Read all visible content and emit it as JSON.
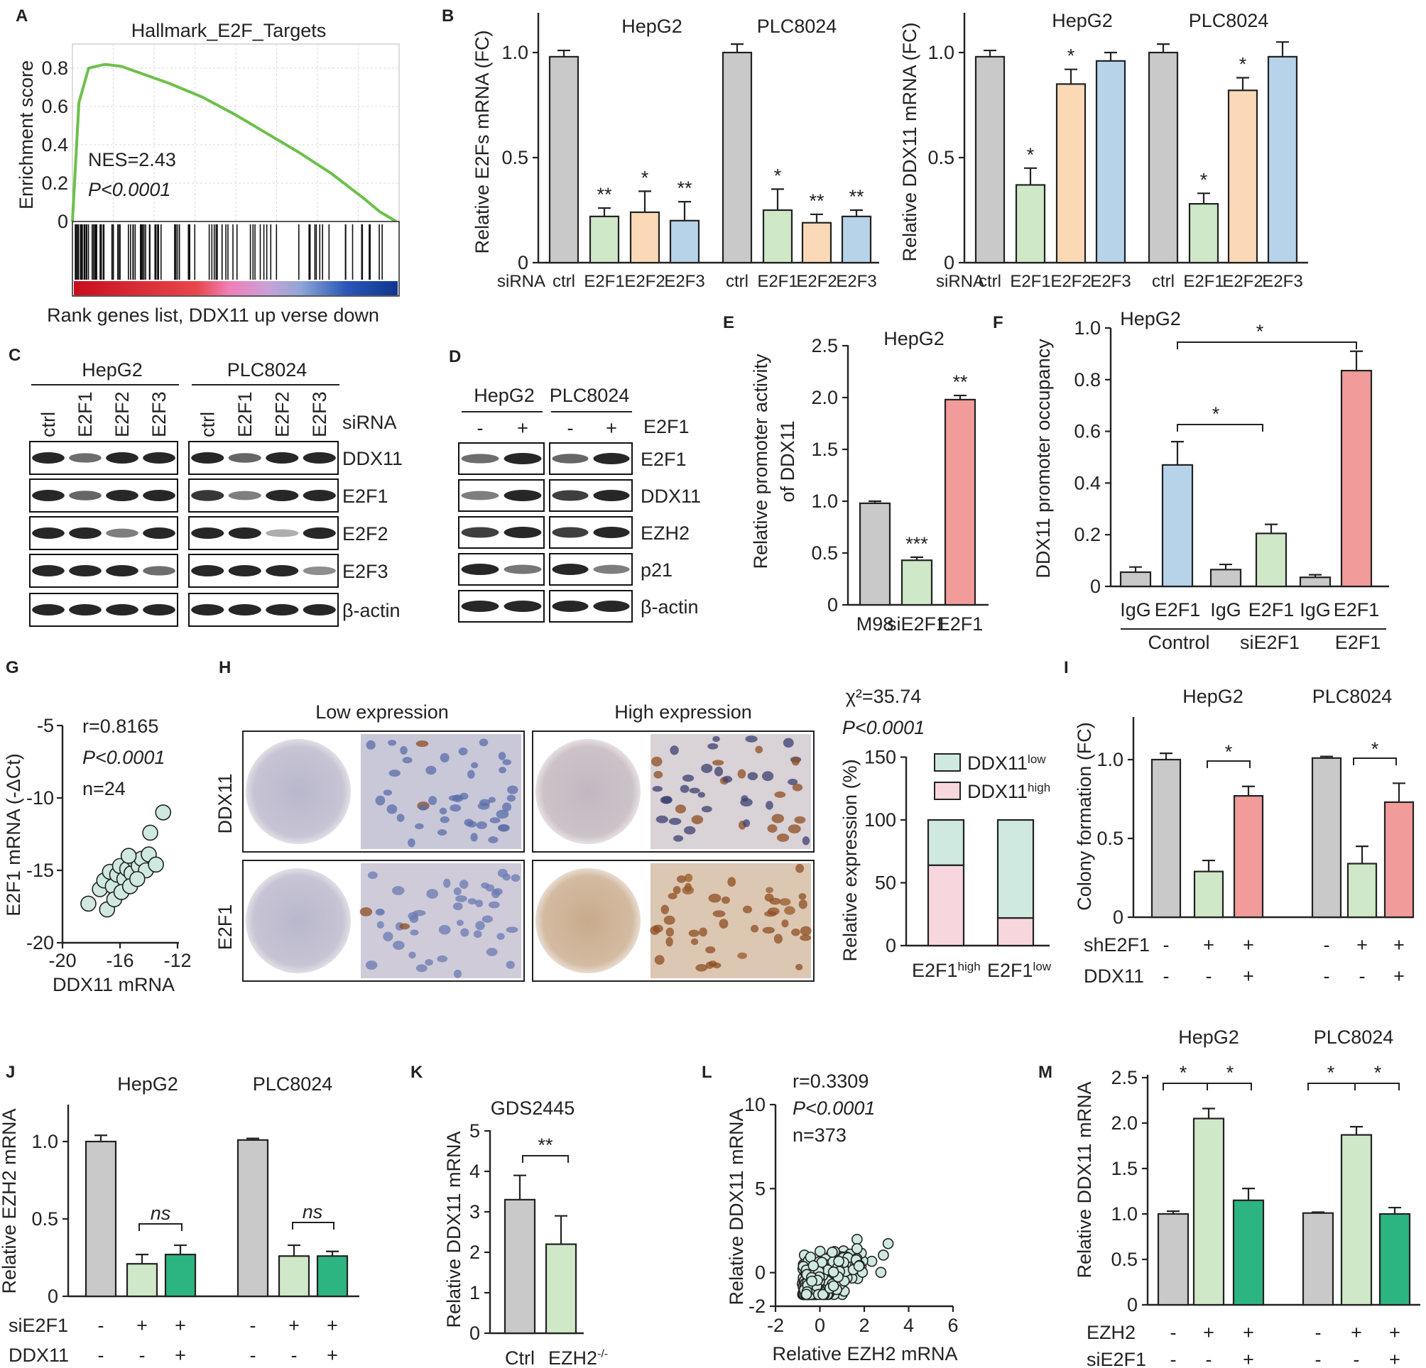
{
  "colors": {
    "ctrl": "#c9c9c9",
    "e2f1": "#cfe8c8",
    "e2f2": "#fbd9b7",
    "e2f3": "#b6d3ea",
    "red": "#f19b9b",
    "green": "#2db581",
    "pink": "#f7d6dd",
    "teal": "#cfe9e0",
    "gsea_line": "#6cc04a"
  },
  "panels": {
    "A": {
      "letter": "A",
      "chart_data": {
        "type": "line",
        "title": "Hallmark_E2F_Targets",
        "ylabel": "Enrichment score",
        "xlabel": "Rank genes list, DDX11 up verse down",
        "yticks": [
          "0",
          "0.2",
          "0.4",
          "0.6",
          "0.8"
        ],
        "ylim": [
          0,
          0.85
        ],
        "x": [
          0,
          0.02,
          0.05,
          0.1,
          0.15,
          0.2,
          0.3,
          0.4,
          0.5,
          0.6,
          0.7,
          0.8,
          0.9,
          0.95,
          1.0
        ],
        "y": [
          0,
          0.62,
          0.8,
          0.82,
          0.81,
          0.78,
          0.72,
          0.65,
          0.56,
          0.46,
          0.36,
          0.25,
          0.12,
          0.05,
          0
        ],
        "annotations": [
          "NES=2.43",
          "P<0.0001"
        ]
      }
    },
    "B1": {
      "letter": "B",
      "chart_data": {
        "type": "bar",
        "ylabel": "Relative E2Fs mRNA (FC)",
        "yticks": [
          "0",
          "0.5",
          "1.0"
        ],
        "ylim": [
          0,
          1.2
        ],
        "row_label": "siRNA",
        "groups": [
          "HepG2",
          "PLC8024"
        ],
        "categories": [
          "ctrl",
          "E2F1",
          "E2F2",
          "E2F3",
          "ctrl",
          "E2F1",
          "E2F2",
          "E2F3"
        ],
        "values": [
          0.98,
          0.22,
          0.24,
          0.2,
          1.0,
          0.25,
          0.19,
          0.22
        ],
        "errors": [
          0.03,
          0.04,
          0.1,
          0.09,
          0.04,
          0.1,
          0.04,
          0.03
        ],
        "significance": [
          "",
          "**",
          "*",
          "**",
          "",
          "*",
          "**",
          "**"
        ]
      }
    },
    "B2": {
      "chart_data": {
        "type": "bar",
        "ylabel": "Relative DDX11 mRNA (FC)",
        "yticks": [
          "0",
          "0.5",
          "1.0"
        ],
        "ylim": [
          0,
          1.2
        ],
        "row_label": "siRNA",
        "groups": [
          "HepG2",
          "PLC8024"
        ],
        "categories": [
          "ctrl",
          "E2F1",
          "E2F2",
          "E2F3",
          "ctrl",
          "E2F1",
          "E2F2",
          "E2F3"
        ],
        "values": [
          0.98,
          0.37,
          0.85,
          0.96,
          1.0,
          0.28,
          0.82,
          0.98
        ],
        "errors": [
          0.03,
          0.08,
          0.07,
          0.04,
          0.04,
          0.05,
          0.06,
          0.07
        ],
        "significance": [
          "",
          "*",
          "*",
          "",
          "",
          "*",
          "*",
          ""
        ]
      }
    },
    "C": {
      "letter": "C",
      "cells": [
        "HepG2",
        "PLC8024"
      ],
      "lanes": [
        "ctrl",
        "E2F1",
        "E2F2",
        "E2F3"
      ],
      "lane_header": "siRNA",
      "rows": [
        "DDX11",
        "E2F1",
        "E2F2",
        "E2F3",
        "β-actin"
      ]
    },
    "D": {
      "letter": "D",
      "cells": [
        "HepG2",
        "PLC8024"
      ],
      "lanes": [
        "-",
        "+"
      ],
      "lane_header": "E2F1",
      "rows": [
        "E2F1",
        "DDX11",
        "EZH2",
        "p21",
        "β-actin"
      ]
    },
    "E": {
      "letter": "E",
      "chart_data": {
        "type": "bar",
        "title": "HepG2",
        "ylabel_lines": [
          "Relative promoter activity",
          "of DDX11"
        ],
        "yticks": [
          "0",
          "0.5",
          "1.0",
          "1.5",
          "2.0",
          "2.5"
        ],
        "ylim": [
          0,
          2.5
        ],
        "categories": [
          "M98",
          "siE2F1",
          "E2F1"
        ],
        "values": [
          0.98,
          0.43,
          1.98
        ],
        "errors": [
          0.02,
          0.03,
          0.04
        ],
        "significance": [
          "",
          "***",
          "**"
        ]
      }
    },
    "F": {
      "letter": "F",
      "chart_data": {
        "type": "bar",
        "title": "HepG2",
        "ylabel": "DDX11 promoter occupancy",
        "yticks": [
          "0",
          "0.2",
          "0.4",
          "0.6",
          "0.8",
          "1.0"
        ],
        "ylim": [
          0,
          1.0
        ],
        "categories": [
          "IgG",
          "E2F1",
          "IgG",
          "E2F1",
          "IgG",
          "E2F1"
        ],
        "groups": [
          "Control",
          "siE2F1",
          "E2F1"
        ],
        "values": [
          0.055,
          0.47,
          0.065,
          0.205,
          0.035,
          0.835
        ],
        "errors": [
          0.02,
          0.09,
          0.02,
          0.035,
          0.01,
          0.075
        ],
        "significance": [
          "*",
          "*"
        ]
      }
    },
    "G": {
      "letter": "G",
      "chart_data": {
        "type": "scatter",
        "xlabel": "DDX11 mRNA",
        "ylabel": "E2F1 mRNA (-ΔCt)",
        "xticks": [
          "-20",
          "-16",
          "-12"
        ],
        "yticks": [
          "-5",
          "-10",
          "-15",
          "-20"
        ],
        "xlim": [
          -20,
          -12
        ],
        "ylim": [
          -20,
          -5
        ],
        "points": [
          [
            -18.2,
            -17.3
          ],
          [
            -17.4,
            -16.3
          ],
          [
            -17.1,
            -15.7
          ],
          [
            -16.7,
            -15.1
          ],
          [
            -16.5,
            -16.1
          ],
          [
            -16.2,
            -15.3
          ],
          [
            -16.0,
            -14.7
          ],
          [
            -15.7,
            -15.6
          ],
          [
            -15.5,
            -14.9
          ],
          [
            -15.2,
            -15.2
          ],
          [
            -15.0,
            -14.3
          ],
          [
            -14.7,
            -14.7
          ],
          [
            -14.5,
            -14.2
          ],
          [
            -14.2,
            -15.0
          ],
          [
            -14.0,
            -13.9
          ],
          [
            -16.9,
            -17.7
          ],
          [
            -16.4,
            -17.0
          ],
          [
            -15.9,
            -16.5
          ],
          [
            -15.3,
            -16.1
          ],
          [
            -14.8,
            -15.6
          ],
          [
            -13.5,
            -14.6
          ],
          [
            -13.9,
            -12.4
          ],
          [
            -13.0,
            -11.0
          ],
          [
            -15.4,
            -14.0
          ]
        ],
        "stats": [
          "r=0.8165",
          "P<0.0001",
          "n=24"
        ]
      }
    },
    "H": {
      "letter": "H",
      "col_titles": [
        "Low expression",
        "High expression"
      ],
      "row_titles": [
        "DDX11",
        "E2F1"
      ],
      "chart_data": {
        "type": "bar",
        "stacked": true,
        "stats": [
          "χ²=35.74",
          "P<0.0001"
        ],
        "ylabel": "Relative expression (%)",
        "yticks": [
          "0",
          "50",
          "100",
          "150"
        ],
        "ylim": [
          0,
          150
        ],
        "categories": [
          "E2F1high",
          "E2F1low"
        ],
        "series": [
          {
            "name": "DDX11low",
            "values": [
              36,
              78
            ]
          },
          {
            "name": "DDX11high",
            "values": [
              64,
              22
            ]
          }
        ]
      }
    },
    "I": {
      "letter": "I",
      "chart_data": {
        "type": "bar",
        "ylabel": "Colony formation (FC)",
        "yticks": [
          "0",
          "0.5",
          "1.0"
        ],
        "ylim": [
          0,
          1.25
        ],
        "groups": [
          "HepG2",
          "PLC8024"
        ],
        "rows": [
          {
            "label": "shE2F1",
            "signs": [
              "-",
              "+",
              "+",
              "-",
              "+",
              "+"
            ]
          },
          {
            "label": "DDX11",
            "signs": [
              "-",
              "-",
              "+",
              "-",
              "-",
              "+"
            ]
          }
        ],
        "values": [
          1.0,
          0.29,
          0.77,
          1.01,
          0.34,
          0.73
        ],
        "errors": [
          0.04,
          0.07,
          0.06,
          0.01,
          0.11,
          0.12
        ],
        "significance": [
          "*",
          "*"
        ]
      }
    },
    "J": {
      "letter": "J",
      "chart_data": {
        "type": "bar",
        "ylabel": "Relative EZH2 mRNA",
        "yticks": [
          "0",
          "0.5",
          "1.0"
        ],
        "ylim": [
          0,
          1.25
        ],
        "groups": [
          "HepG2",
          "PLC8024"
        ],
        "rows": [
          {
            "label": "siE2F1",
            "signs": [
              "-",
              "+",
              "+",
              "-",
              "+",
              "+"
            ]
          },
          {
            "label": "DDX11",
            "signs": [
              "-",
              "-",
              "+",
              "-",
              "-",
              "+"
            ]
          }
        ],
        "values": [
          1.0,
          0.21,
          0.27,
          1.01,
          0.26,
          0.26
        ],
        "errors": [
          0.04,
          0.06,
          0.06,
          0.01,
          0.07,
          0.03
        ],
        "significance": [
          "ns",
          "ns"
        ]
      }
    },
    "K": {
      "letter": "K",
      "chart_data": {
        "type": "bar",
        "title": "GDS2445",
        "ylabel": "Relative DDX11 mRNA",
        "yticks": [
          "0",
          "1",
          "2",
          "3",
          "4",
          "5"
        ],
        "ylim": [
          0,
          5
        ],
        "categories": [
          "Ctrl",
          "EZH2-/-"
        ],
        "values": [
          3.3,
          2.2
        ],
        "errors": [
          0.6,
          0.7
        ],
        "significance": [
          "**"
        ]
      }
    },
    "L": {
      "letter": "L",
      "chart_data": {
        "type": "scatter",
        "xlabel": "Relative EZH2 mRNA",
        "ylabel": "Relative DDX11  mRNA",
        "xticks": [
          "-2",
          "0",
          "2",
          "4",
          "6"
        ],
        "yticks": [
          "-2",
          "0",
          "5",
          "10"
        ],
        "xlim": [
          -2,
          6
        ],
        "ylim": [
          -2,
          10
        ],
        "n_points": 373,
        "stats": [
          "r=0.3309",
          "P<0.0001",
          "n=373"
        ]
      }
    },
    "M": {
      "letter": "M",
      "chart_data": {
        "type": "bar",
        "ylabel": "Relative DDX11 mRNA",
        "yticks": [
          "0",
          "0.5",
          "1.0",
          "1.5",
          "2.0",
          "2.5"
        ],
        "ylim": [
          0,
          2.5
        ],
        "groups": [
          "HepG2",
          "PLC8024"
        ],
        "rows": [
          {
            "label": "EZH2",
            "signs": [
              "-",
              "+",
              "+",
              "-",
              "+",
              "+"
            ]
          },
          {
            "label": "siE2F1",
            "signs": [
              "-",
              "-",
              "+",
              "-",
              "-",
              "+"
            ]
          }
        ],
        "values": [
          1.0,
          2.05,
          1.15,
          1.01,
          1.87,
          1.0
        ],
        "errors": [
          0.03,
          0.11,
          0.13,
          0.01,
          0.09,
          0.07
        ],
        "significance": [
          "*",
          "*",
          "*",
          "*"
        ]
      }
    }
  }
}
